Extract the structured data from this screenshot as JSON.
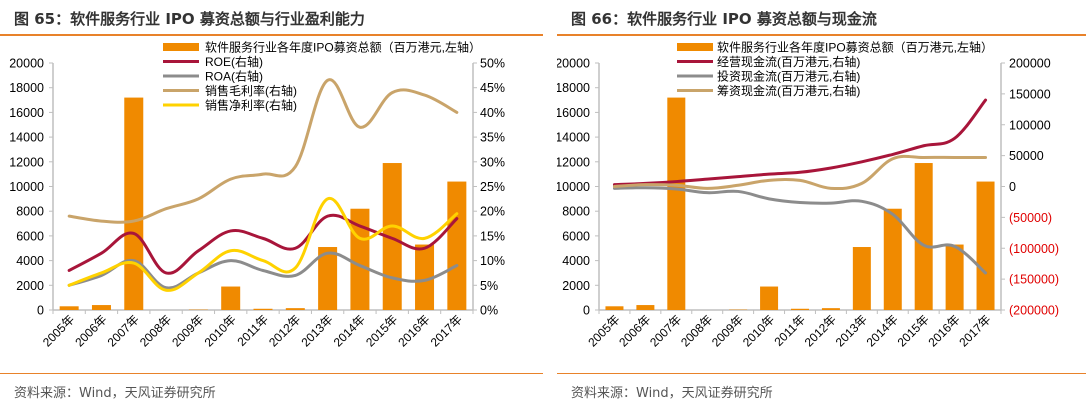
{
  "colors": {
    "accent_rule": "#e8822a",
    "bar": "#f08a00",
    "roe": "#a8153a",
    "roa": "#8c8c8c",
    "gross": "#c9a46a",
    "net": "#ffd200",
    "axis": "#bfbfbf",
    "negative_label": "#e00000"
  },
  "left_panel": {
    "title": "图 65：软件服务行业 IPO 募资总额与行业盈利能力",
    "source": "资料来源：Wind，天风证券研究所"
  },
  "right_panel": {
    "title": "图 66：软件服务行业 IPO 募资总额与现金流",
    "source": "资料来源：Wind，天风证券研究所"
  },
  "chart_data": [
    {
      "type": "bar",
      "title": "软件服务行业 IPO 募资总额与行业盈利能力",
      "categories": [
        "2005年",
        "2006年",
        "2007年",
        "2008年",
        "2009年",
        "2010年",
        "2011年",
        "2012年",
        "2013年",
        "2014年",
        "2015年",
        "2016年",
        "2017年"
      ],
      "left_axis": {
        "ylim": [
          0,
          20000
        ],
        "ticks": [
          "0",
          "2000",
          "4000",
          "6000",
          "8000",
          "10000",
          "12000",
          "14000",
          "16000",
          "18000",
          "20000"
        ]
      },
      "right_axis": {
        "ylim": [
          0,
          50
        ],
        "ticks": [
          "0%",
          "5%",
          "10%",
          "15%",
          "20%",
          "25%",
          "30%",
          "35%",
          "40%",
          "45%",
          "50%"
        ]
      },
      "legend_position": "top-center",
      "series": [
        {
          "name": "软件服务行业各年度IPO募资总额（百万港元,左轴）",
          "type": "bar",
          "axis": "left",
          "color_key": "bar",
          "values": [
            300,
            400,
            17200,
            0,
            30,
            1900,
            100,
            150,
            5100,
            8200,
            11900,
            5300,
            10400
          ]
        },
        {
          "name": "ROE(右轴)",
          "type": "line",
          "axis": "right",
          "color_key": "roe",
          "values": [
            8,
            11.5,
            15.5,
            7.5,
            12,
            16,
            14.5,
            12.5,
            19,
            17,
            14.5,
            12.5,
            18.5
          ]
        },
        {
          "name": "ROA(右轴)",
          "type": "line",
          "axis": "right",
          "color_key": "roa",
          "values": [
            5,
            7,
            10,
            4.5,
            7.5,
            10,
            8,
            7,
            11.5,
            9,
            6.5,
            6,
            9
          ]
        },
        {
          "name": "销售毛利率(右轴)",
          "type": "line",
          "axis": "right",
          "color_key": "gross",
          "values": [
            19,
            18,
            18,
            20.5,
            22.5,
            26.5,
            27.5,
            29,
            46.5,
            37,
            44,
            43.5,
            40
          ]
        },
        {
          "name": "销售净利率(右轴)",
          "type": "line",
          "axis": "right",
          "color_key": "net",
          "values": [
            5,
            7.5,
            9.5,
            4,
            7.5,
            12,
            10,
            8.5,
            22.5,
            14.5,
            17,
            14.5,
            19.5
          ]
        }
      ]
    },
    {
      "type": "bar",
      "title": "软件服务行业 IPO 募资总额与现金流",
      "categories": [
        "2005年",
        "2006年",
        "2007年",
        "2008年",
        "2009年",
        "2010年",
        "2011年",
        "2012年",
        "2013年",
        "2014年",
        "2015年",
        "2016年",
        "2017年"
      ],
      "left_axis": {
        "ylim": [
          0,
          20000
        ],
        "ticks": [
          "0",
          "2000",
          "4000",
          "6000",
          "8000",
          "10000",
          "12000",
          "14000",
          "16000",
          "18000",
          "20000"
        ]
      },
      "right_axis": {
        "ylim": [
          -200000,
          200000
        ],
        "ticks": [
          "(200000)",
          "(150000)",
          "(100000)",
          "(50000)",
          "0",
          "50000",
          "100000",
          "150000",
          "200000"
        ]
      },
      "legend_position": "top-center",
      "series": [
        {
          "name": "软件服务行业各年度IPO募资总额（百万港元,左轴）",
          "type": "bar",
          "axis": "left",
          "color_key": "bar",
          "values": [
            300,
            400,
            17200,
            0,
            30,
            1900,
            100,
            150,
            5100,
            8200,
            11900,
            5300,
            10400
          ]
        },
        {
          "name": "经营现金流(百万港元,右轴)",
          "type": "line",
          "axis": "right",
          "color_key": "roe",
          "values": [
            3000,
            5000,
            8000,
            12000,
            16000,
            20000,
            23000,
            30000,
            40000,
            52000,
            66000,
            78000,
            140000
          ]
        },
        {
          "name": "投资现金流(百万港元,右轴)",
          "type": "line",
          "axis": "right",
          "color_key": "roa",
          "values": [
            -3000,
            -2000,
            -4000,
            -10000,
            -8000,
            -20000,
            -26000,
            -27000,
            -24000,
            -45000,
            -95000,
            -97000,
            -140000
          ]
        },
        {
          "name": "筹资现金流(百万港元,右轴)",
          "type": "line",
          "axis": "right",
          "color_key": "gross",
          "values": [
            0,
            3000,
            2000,
            -3000,
            2000,
            10000,
            10000,
            -3000,
            5000,
            45000,
            47000,
            47000,
            47000
          ]
        }
      ]
    }
  ]
}
